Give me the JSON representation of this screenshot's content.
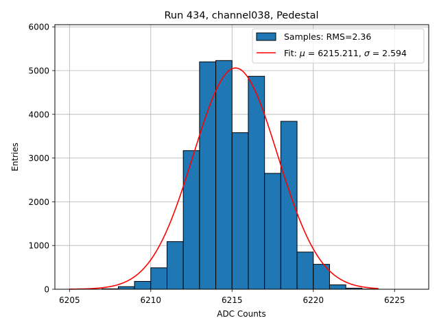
{
  "chart_data": {
    "type": "bar",
    "title": "Run 434, channel038, Pedestal",
    "xlabel": "ADC Counts",
    "ylabel": "Entries",
    "xlim": [
      6204.1,
      6227.1
    ],
    "ylim": [
      0,
      6050
    ],
    "xticks": [
      6205,
      6210,
      6215,
      6220,
      6225
    ],
    "yticks": [
      0,
      1000,
      2000,
      3000,
      4000,
      5000,
      6000
    ],
    "grid": true,
    "legend_position": "top-right",
    "histogram": {
      "name": "Samples: RMS=2.36",
      "color": "#1f77b4",
      "edgecolor": "#000000",
      "bin_width": 1,
      "bins": [
        {
          "x": 6207.5,
          "value": 10
        },
        {
          "x": 6208.5,
          "value": 60
        },
        {
          "x": 6209.5,
          "value": 180
        },
        {
          "x": 6210.5,
          "value": 490
        },
        {
          "x": 6211.5,
          "value": 1090
        },
        {
          "x": 6212.5,
          "value": 3170
        },
        {
          "x": 6213.5,
          "value": 5200
        },
        {
          "x": 6214.5,
          "value": 5230
        },
        {
          "x": 6215.5,
          "value": 3580
        },
        {
          "x": 6216.5,
          "value": 4870
        },
        {
          "x": 6217.5,
          "value": 2650
        },
        {
          "x": 6218.5,
          "value": 3840
        },
        {
          "x": 6219.5,
          "value": 850
        },
        {
          "x": 6220.5,
          "value": 570
        },
        {
          "x": 6221.5,
          "value": 100
        },
        {
          "x": 6222.5,
          "value": 25
        },
        {
          "x": 6223.5,
          "value": 5
        }
      ]
    },
    "fit": {
      "name": "Fit: μ = 6215.211, σ = 2.594",
      "label_prefix": "Fit: ",
      "label_mu": "μ",
      "label_mu_value": " = 6215.211, ",
      "label_sigma": "σ",
      "label_sigma_value": " = 2.594",
      "color": "#ff0000",
      "mu": 6215.211,
      "sigma": 2.594,
      "amplitude": 5060,
      "x_range": [
        6205,
        6224
      ]
    }
  }
}
